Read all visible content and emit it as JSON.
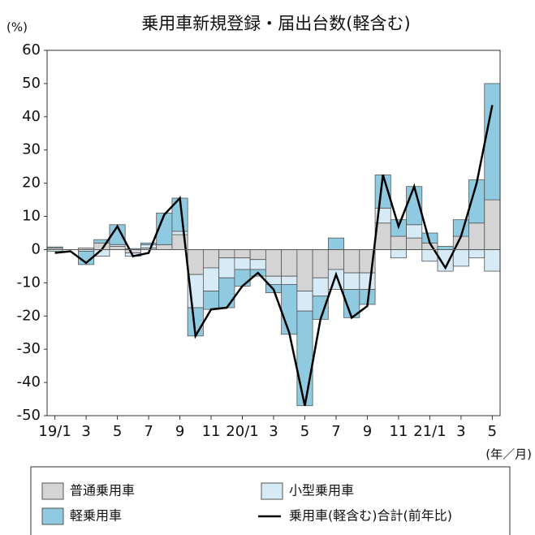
{
  "chart_data": {
    "type": "bar",
    "title": "乗用車新規登録・届出台数(軽含む)",
    "y_unit_label": "(%)",
    "x_unit_label": "(年／月)",
    "categories": [
      "19/1",
      null,
      "3",
      null,
      "5",
      null,
      "7",
      null,
      "9",
      null,
      "11",
      null,
      "20/1",
      null,
      "3",
      null,
      "5",
      null,
      "7",
      null,
      "9",
      null,
      "11",
      null,
      "21/1",
      null,
      "3",
      null,
      "5"
    ],
    "series": [
      {
        "name": "普通乗用車",
        "color": "#d4d4d4",
        "values": [
          0.5,
          0,
          0.5,
          2,
          1,
          -1,
          0.5,
          1.5,
          4.5,
          -7.5,
          -5.5,
          -2.5,
          -2.5,
          -3,
          -8,
          -8,
          -12.5,
          -8.5,
          -6,
          -7,
          -7,
          8,
          4,
          3.5,
          2,
          0,
          4,
          8,
          15
        ]
      },
      {
        "name": "小型乗用車",
        "color": "#d6ebf6",
        "values": [
          -0.5,
          0,
          -0.5,
          -2,
          0.5,
          -1,
          1,
          0,
          1,
          -10,
          -7,
          -6,
          -3.5,
          -3,
          -2.5,
          -2.5,
          -6,
          -5.5,
          -6,
          -5,
          -5,
          4.5,
          -2.5,
          4,
          -3.5,
          -6.5,
          -5,
          -2.5,
          -6.5
        ]
      },
      {
        "name": "軽乗用車",
        "color": "#8fcae1",
        "values": [
          0.3,
          0,
          -4,
          1,
          6,
          0.3,
          0.5,
          9.5,
          10,
          -8.5,
          -5.5,
          -9,
          -5,
          -2,
          -2.5,
          -15,
          -28.5,
          -7,
          3.5,
          -8.5,
          -4.5,
          10,
          5,
          11.5,
          3,
          1,
          5,
          13,
          35
        ]
      },
      {
        "name": "乗用車(軽含む)合計(前年比)",
        "type": "line",
        "color": "#000000",
        "values": [
          -1,
          -0.5,
          -4,
          0,
          7,
          -2,
          -1,
          10.5,
          15.5,
          -26,
          -18,
          -17.5,
          -11,
          -7,
          -12,
          -25,
          -47,
          -21,
          -7.5,
          -20.5,
          -17,
          22.5,
          7,
          19,
          2,
          -5.5,
          4,
          20,
          43.5
        ]
      }
    ],
    "ylim": [
      -50,
      60
    ],
    "yticks": [
      -50,
      -40,
      -30,
      -20,
      -10,
      0,
      10,
      20,
      30,
      40,
      50,
      60
    ]
  }
}
